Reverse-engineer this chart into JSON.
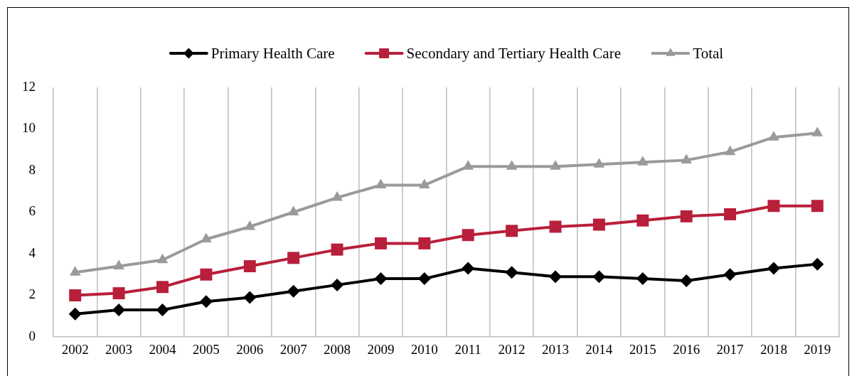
{
  "chart_data": {
    "type": "line",
    "categories": [
      "2002",
      "2003",
      "2004",
      "2005",
      "2006",
      "2007",
      "2008",
      "2009",
      "2010",
      "2011",
      "2012",
      "2013",
      "2014",
      "2015",
      "2016",
      "2017",
      "2018",
      "2019"
    ],
    "series": [
      {
        "name": "Primary Health Care",
        "color": "#000000",
        "marker": "diamond",
        "values": [
          1.1,
          1.3,
          1.3,
          1.7,
          1.9,
          2.2,
          2.5,
          2.8,
          2.8,
          3.3,
          3.1,
          2.9,
          2.9,
          2.8,
          2.7,
          3.0,
          3.3,
          3.5
        ]
      },
      {
        "name": "Secondary and Tertiary Health Care",
        "color": "#b81f3a",
        "marker": "square",
        "values": [
          2.0,
          2.1,
          2.4,
          3.0,
          3.4,
          3.8,
          4.2,
          4.5,
          4.5,
          4.9,
          5.1,
          5.3,
          5.4,
          5.6,
          5.8,
          5.9,
          6.3,
          6.3
        ]
      },
      {
        "name": "Total",
        "color": "#999a9c",
        "marker": "triangle",
        "values": [
          3.1,
          3.4,
          3.7,
          4.7,
          5.3,
          6.0,
          6.7,
          7.3,
          7.3,
          8.2,
          8.2,
          8.2,
          8.3,
          8.4,
          8.5,
          8.9,
          9.6,
          9.8
        ]
      }
    ],
    "ylim": [
      0,
      12
    ],
    "yticks": [
      0,
      2,
      4,
      6,
      8,
      10,
      12
    ],
    "grid": "x",
    "legend": "top",
    "line_style": "solid"
  }
}
